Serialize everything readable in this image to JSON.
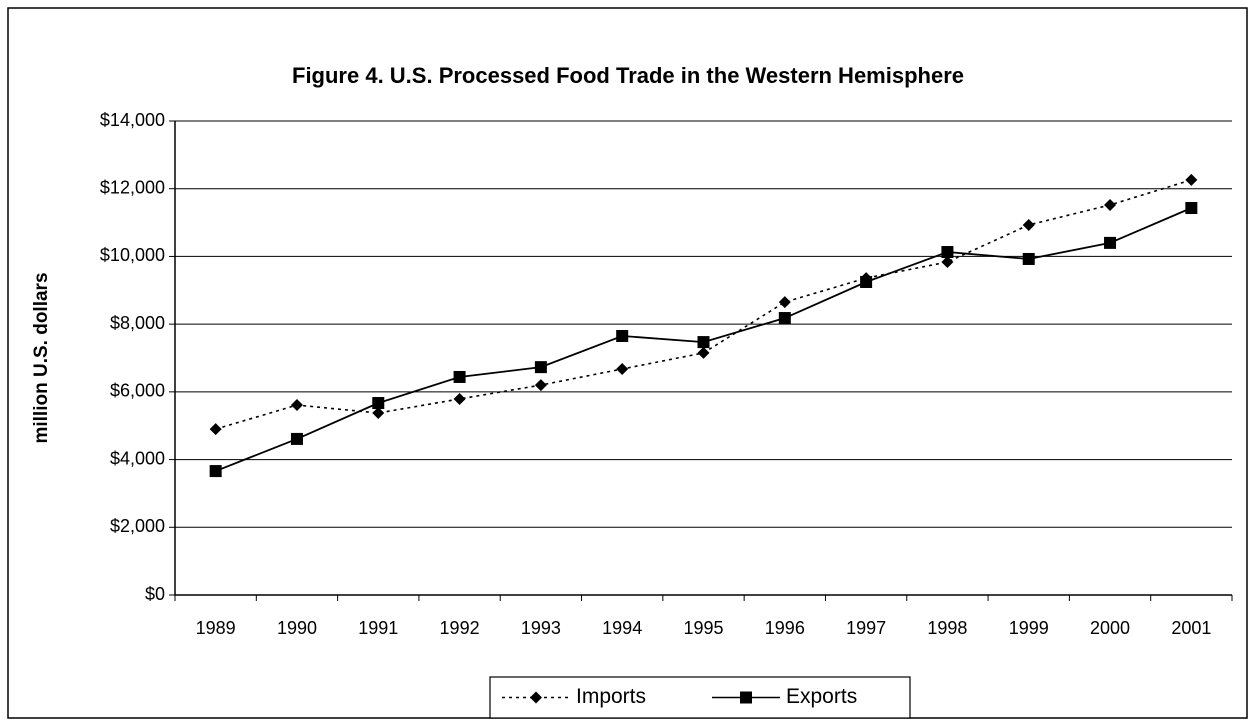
{
  "chart_data": {
    "type": "line",
    "title": "Figure 4.  U.S. Processed Food Trade in the Western Hemisphere",
    "y_label": "million U.S. dollars",
    "categories": [
      "1989",
      "1990",
      "1991",
      "1992",
      "1993",
      "1994",
      "1995",
      "1996",
      "1997",
      "1998",
      "1999",
      "2000",
      "2001"
    ],
    "series": [
      {
        "name": "Imports",
        "color": "#000000",
        "style": "dotted",
        "marker": "diamond",
        "values": [
          4900,
          5610,
          5375,
          5790,
          6200,
          6675,
          7150,
          8650,
          9360,
          9835,
          10930,
          11520,
          12260
        ]
      },
      {
        "name": "Exports",
        "color": "#000000",
        "style": "solid",
        "marker": "square",
        "values": [
          3660,
          4610,
          5670,
          6440,
          6730,
          7650,
          7470,
          8180,
          9245,
          10130,
          9925,
          10400,
          11430
        ]
      }
    ],
    "ylim": [
      0,
      14000
    ],
    "yticks": [
      {
        "value": 0,
        "label": "$0"
      },
      {
        "value": 2000,
        "label": "$2,000"
      },
      {
        "value": 4000,
        "label": "$4,000"
      },
      {
        "value": 6000,
        "label": "$6,000"
      },
      {
        "value": 8000,
        "label": "$8,000"
      },
      {
        "value": 10000,
        "label": "$10,000"
      },
      {
        "value": 12000,
        "label": "$12,000"
      },
      {
        "value": 14000,
        "label": "$14,000"
      }
    ],
    "grid": true,
    "legend": "bottom"
  }
}
